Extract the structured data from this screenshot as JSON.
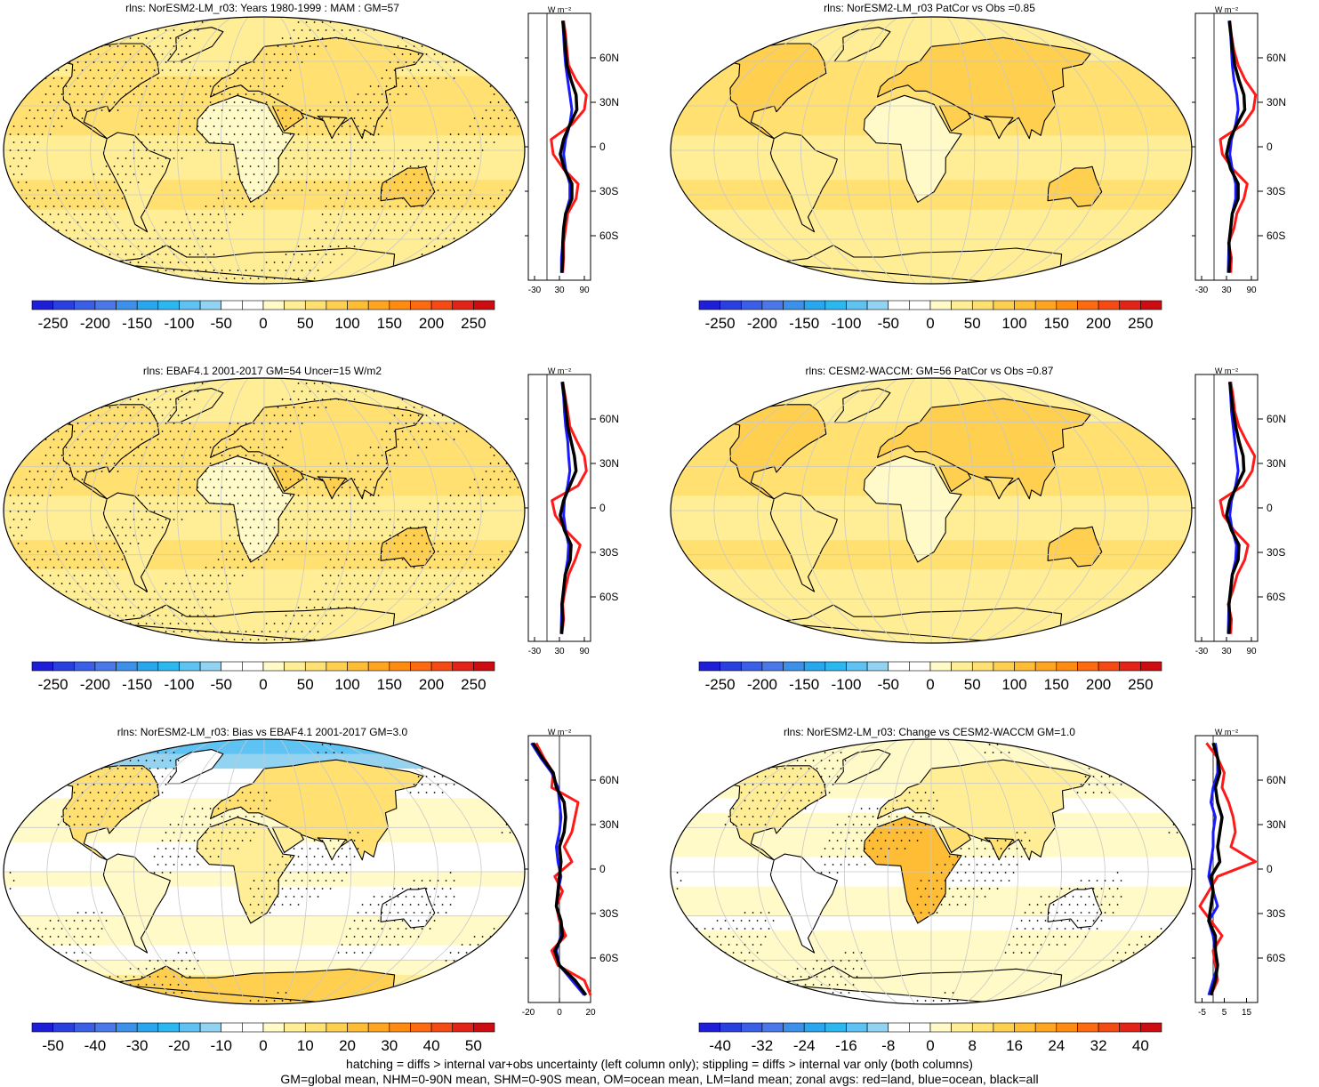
{
  "footnotes": [
    "hatching = diffs > internal var+obs uncertainty (left column only); stippling = diffs > internal var only (both columns)",
    "GM=global mean, NHM=0-90N mean, SHM=0-90S mean, OM=ocean mean, LM=land mean; zonal avgs: red=land, blue=ocean, black=all"
  ],
  "zonal_unit": "W m⁻²",
  "lat_ticks": [
    "60N",
    "30N",
    "0",
    "30S",
    "60S"
  ],
  "colors": {
    "land": "#ff1a1a",
    "ocean": "#1a1aff",
    "all": "#000000",
    "coast": "#000000",
    "grid": "#c8c8c8"
  },
  "chart_data": [
    {
      "type": "heatmap",
      "title": "rlns: NorESM2-LM_r03: Years 1980-1999 : MAM : GM=57",
      "colorbar_ticks": [
        "-250",
        "-200",
        "-150",
        "-100",
        "-50",
        "0",
        "50",
        "100",
        "150",
        "200",
        "250"
      ],
      "colorbar_range": [
        -275,
        275
      ],
      "zonal_xticks": [
        "-30",
        "30",
        "90"
      ],
      "zonal_xrange": [
        -45,
        105
      ],
      "zonal": {
        "lat": [
          85,
          75,
          65,
          55,
          45,
          35,
          25,
          15,
          5,
          -5,
          -15,
          -25,
          -35,
          -45,
          -55,
          -65,
          -75,
          -85
        ],
        "land": [
          40,
          45,
          48,
          52,
          70,
          95,
          90,
          60,
          10,
          15,
          40,
          75,
          70,
          50,
          45,
          40,
          40,
          38
        ],
        "ocean": [
          38,
          40,
          42,
          45,
          50,
          55,
          60,
          55,
          45,
          40,
          45,
          55,
          55,
          45,
          40,
          38,
          35,
          35
        ],
        "all": [
          38,
          42,
          45,
          48,
          58,
          70,
          72,
          55,
          40,
          32,
          42,
          60,
          60,
          45,
          40,
          38,
          38,
          36
        ]
      }
    },
    {
      "type": "heatmap",
      "title": "rlns: NorESM2-LM_r03 PatCor vs Obs =0.85",
      "colorbar_ticks": [
        "-250",
        "-200",
        "-150",
        "-100",
        "-50",
        "0",
        "50",
        "100",
        "150",
        "200",
        "250"
      ],
      "colorbar_range": [
        -275,
        275
      ],
      "zonal_xticks": [
        "-30",
        "30",
        "90"
      ],
      "zonal_xrange": [
        -45,
        105
      ],
      "zonal": {
        "lat": [
          85,
          75,
          65,
          55,
          45,
          35,
          25,
          15,
          5,
          -5,
          -15,
          -25,
          -35,
          -45,
          -55,
          -65,
          -75,
          -85
        ],
        "land": [
          38,
          42,
          48,
          58,
          75,
          100,
          95,
          70,
          15,
          20,
          45,
          80,
          72,
          55,
          48,
          35,
          42,
          40
        ],
        "ocean": [
          36,
          40,
          42,
          44,
          48,
          55,
          58,
          52,
          42,
          38,
          44,
          52,
          52,
          44,
          40,
          36,
          35,
          34
        ],
        "all": [
          37,
          41,
          45,
          50,
          60,
          72,
          74,
          55,
          38,
          30,
          40,
          58,
          58,
          44,
          40,
          36,
          38,
          36
        ]
      }
    },
    {
      "type": "heatmap",
      "title": "rlns: EBAF4.1 2001-2017 GM=54 Uncer=15 W/m2",
      "colorbar_ticks": [
        "-250",
        "-200",
        "-150",
        "-100",
        "-50",
        "0",
        "50",
        "100",
        "150",
        "200",
        "250"
      ],
      "colorbar_range": [
        -275,
        275
      ],
      "zonal_xticks": [
        "-30",
        "30",
        "90"
      ],
      "zonal_xrange": [
        -45,
        105
      ],
      "zonal": {
        "lat": [
          85,
          75,
          65,
          55,
          45,
          35,
          25,
          15,
          5,
          -5,
          -15,
          -25,
          -35,
          -45,
          -55,
          -65,
          -75,
          -85
        ],
        "land": [
          38,
          44,
          50,
          55,
          72,
          90,
          95,
          75,
          12,
          20,
          45,
          80,
          68,
          52,
          44,
          38,
          40,
          36
        ],
        "ocean": [
          36,
          40,
          42,
          45,
          50,
          52,
          55,
          50,
          42,
          40,
          45,
          52,
          50,
          44,
          40,
          36,
          35,
          34
        ],
        "all": [
          37,
          42,
          46,
          50,
          58,
          66,
          70,
          55,
          40,
          32,
          42,
          58,
          56,
          44,
          40,
          36,
          38,
          35
        ]
      }
    },
    {
      "type": "heatmap",
      "title": "rlns: CESM2-WACCM: GM=56 PatCor vs Obs =0.87",
      "colorbar_ticks": [
        "-250",
        "-200",
        "-150",
        "-100",
        "-50",
        "0",
        "50",
        "100",
        "150",
        "200",
        "250"
      ],
      "colorbar_range": [
        -275,
        275
      ],
      "zonal_xticks": [
        "-30",
        "30",
        "90"
      ],
      "zonal_xrange": [
        -45,
        105
      ],
      "zonal": {
        "lat": [
          85,
          75,
          65,
          55,
          45,
          35,
          25,
          15,
          5,
          -5,
          -15,
          -25,
          -35,
          -45,
          -55,
          -65,
          -75,
          -85
        ],
        "land": [
          40,
          46,
          50,
          60,
          78,
          98,
          92,
          70,
          15,
          22,
          48,
          82,
          74,
          56,
          46,
          34,
          42,
          40
        ],
        "ocean": [
          38,
          40,
          42,
          46,
          50,
          54,
          58,
          52,
          42,
          38,
          44,
          54,
          52,
          44,
          40,
          36,
          35,
          34
        ],
        "all": [
          38,
          42,
          46,
          52,
          60,
          70,
          72,
          55,
          38,
          30,
          42,
          60,
          58,
          44,
          40,
          36,
          38,
          36
        ]
      }
    },
    {
      "type": "heatmap",
      "title": "rlns: NorESM2-LM_r03: Bias vs EBAF4.1 2001-2017 GM=3.0",
      "colorbar_ticks": [
        "-50",
        "-40",
        "-30",
        "-20",
        "-10",
        "0",
        "10",
        "20",
        "30",
        "40",
        "50"
      ],
      "colorbar_range": [
        -55,
        55
      ],
      "zonal_xticks": [
        "-20",
        "0",
        "20"
      ],
      "zonal_xrange": [
        -20,
        20
      ],
      "zonal": {
        "lat": [
          85,
          75,
          65,
          55,
          45,
          35,
          25,
          15,
          5,
          -5,
          -15,
          -25,
          -35,
          -45,
          -55,
          -65,
          -75,
          -85
        ],
        "land": [
          -15,
          -10,
          -4,
          -5,
          12,
          10,
          8,
          3,
          8,
          -3,
          2,
          -2,
          0,
          4,
          -5,
          -1,
          16,
          20
        ],
        "ocean": [
          -18,
          -12,
          -5,
          -1,
          0,
          1,
          0,
          -2,
          -1,
          1,
          -1,
          -2,
          1,
          1,
          -2,
          0,
          8,
          16
        ],
        "all": [
          -17,
          -11,
          -4,
          -2,
          3,
          4,
          3,
          0,
          1,
          0,
          -1,
          -2,
          1,
          2,
          -3,
          0,
          10,
          17
        ]
      }
    },
    {
      "type": "heatmap",
      "title": "rlns: NorESM2-LM_r03: Change vs CESM2-WACCM GM=1.0",
      "colorbar_ticks": [
        "-40",
        "-32",
        "-24",
        "-16",
        "-8",
        "0",
        "8",
        "16",
        "24",
        "32",
        "40"
      ],
      "colorbar_range": [
        -44,
        44
      ],
      "zonal_xticks": [
        "-5",
        "5",
        "15"
      ],
      "zonal_xrange": [
        -8,
        20
      ],
      "zonal": {
        "lat": [
          85,
          75,
          65,
          55,
          45,
          35,
          25,
          15,
          5,
          -5,
          -15,
          -25,
          -35,
          -45,
          -55,
          -65,
          -75,
          -85
        ],
        "land": [
          -3,
          2,
          5,
          4,
          7,
          9,
          10,
          8,
          19,
          2,
          -2,
          -6,
          -1,
          4,
          0,
          1,
          2,
          -1
        ],
        "ocean": [
          1,
          2,
          2,
          0,
          -1,
          1,
          0,
          0,
          -1,
          -2,
          0,
          2,
          -2,
          0,
          1,
          2,
          0,
          -2
        ],
        "all": [
          0,
          2,
          3,
          1,
          2,
          4,
          3,
          2,
          3,
          -1,
          0,
          -1,
          -2,
          1,
          1,
          2,
          1,
          -1
        ]
      }
    }
  ]
}
